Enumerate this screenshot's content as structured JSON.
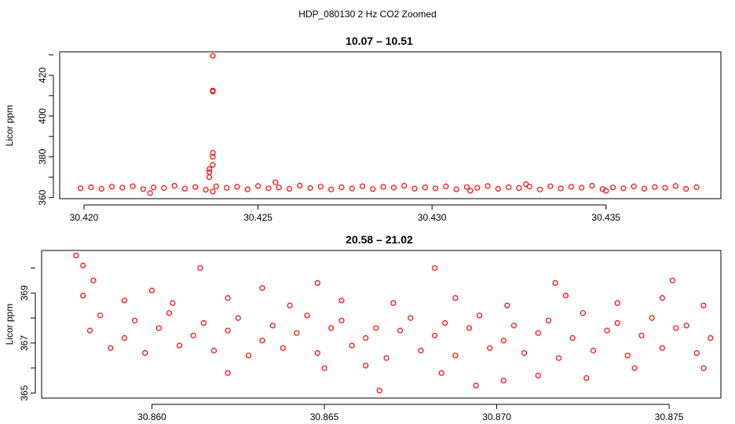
{
  "figure": {
    "title": "HDP_080130  2 Hz CO2 Zoomed"
  },
  "chart_data": [
    {
      "type": "scatter",
      "title": "10.07 – 10.51",
      "ylabel": "Licor ppm",
      "xlabel": "",
      "xlim": [
        30.4193,
        30.4383
      ],
      "ylim": [
        359.5,
        431.5
      ],
      "xticks": [
        "30.420",
        "30.425",
        "30.430",
        "30.435"
      ],
      "yticks": [
        "360",
        "380",
        "400",
        "420"
      ],
      "marker": "open-circle",
      "color": "#ff0000",
      "series_note_x_range": [
        30.4197,
        30.4378
      ],
      "points": [
        [
          30.4199,
          364.6
        ],
        [
          30.4202,
          365.1
        ],
        [
          30.4205,
          364.3
        ],
        [
          30.4208,
          365.4
        ],
        [
          30.4211,
          364.9
        ],
        [
          30.4214,
          365.6
        ],
        [
          30.4217,
          364.2
        ],
        [
          30.422,
          365.0
        ],
        [
          30.4223,
          364.7
        ],
        [
          30.4226,
          365.8
        ],
        [
          30.4229,
          364.4
        ],
        [
          30.4232,
          365.2
        ],
        [
          30.4235,
          363.9
        ],
        [
          30.4238,
          365.5
        ],
        [
          30.4241,
          364.8
        ],
        [
          30.4244,
          365.3
        ],
        [
          30.4247,
          364.1
        ],
        [
          30.425,
          365.7
        ],
        [
          30.4253,
          364.6
        ],
        [
          30.4256,
          365.0
        ],
        [
          30.4259,
          364.3
        ],
        [
          30.4262,
          365.9
        ],
        [
          30.4265,
          364.7
        ],
        [
          30.4268,
          365.4
        ],
        [
          30.4271,
          364.0
        ],
        [
          30.4274,
          365.1
        ],
        [
          30.4277,
          364.5
        ],
        [
          30.428,
          365.6
        ],
        [
          30.4283,
          364.2
        ],
        [
          30.4286,
          365.3
        ],
        [
          30.4289,
          364.9
        ],
        [
          30.4292,
          365.8
        ],
        [
          30.4295,
          364.4
        ],
        [
          30.4298,
          365.0
        ],
        [
          30.4301,
          364.6
        ],
        [
          30.4304,
          365.5
        ],
        [
          30.4307,
          364.1
        ],
        [
          30.431,
          365.2
        ],
        [
          30.4313,
          364.8
        ],
        [
          30.4316,
          365.7
        ],
        [
          30.4319,
          364.3
        ],
        [
          30.4322,
          365.1
        ],
        [
          30.4325,
          364.7
        ],
        [
          30.4328,
          365.4
        ],
        [
          30.4331,
          364.0
        ],
        [
          30.4334,
          365.6
        ],
        [
          30.4337,
          364.5
        ],
        [
          30.434,
          365.3
        ],
        [
          30.4343,
          364.9
        ],
        [
          30.4346,
          365.8
        ],
        [
          30.4349,
          364.2
        ],
        [
          30.4352,
          365.0
        ],
        [
          30.4355,
          364.6
        ],
        [
          30.4358,
          365.5
        ],
        [
          30.4361,
          364.4
        ],
        [
          30.4364,
          365.2
        ],
        [
          30.4367,
          364.8
        ],
        [
          30.437,
          365.7
        ],
        [
          30.4373,
          364.3
        ],
        [
          30.4376,
          365.1
        ],
        [
          30.4219,
          362.2
        ],
        [
          30.4237,
          363.0
        ],
        [
          30.4311,
          363.4
        ],
        [
          30.435,
          363.3
        ],
        [
          30.4236,
          370.0
        ],
        [
          30.4236,
          372.5
        ],
        [
          30.4236,
          374.0
        ],
        [
          30.4237,
          376.0
        ],
        [
          30.4237,
          380.0
        ],
        [
          30.4237,
          382.0
        ],
        [
          30.4237,
          412.0
        ],
        [
          30.4237,
          412.5
        ],
        [
          30.4237,
          429.5
        ],
        [
          30.4255,
          367.5
        ],
        [
          30.4327,
          366.6
        ]
      ]
    },
    {
      "type": "scatter",
      "title": "20.58 – 21.02",
      "ylabel": "Licor ppm",
      "xlabel": "",
      "xlim": [
        30.8568,
        30.8765
      ],
      "ylim": [
        364.8,
        370.7
      ],
      "xticks": [
        "30.860",
        "30.865",
        "30.870",
        "30.875"
      ],
      "yticks": [
        "365",
        "367",
        "369"
      ],
      "marker": "open-circle",
      "color": "#ff0000",
      "points": [
        [
          30.8578,
          370.5
        ],
        [
          30.858,
          370.1
        ],
        [
          30.8583,
          369.5
        ],
        [
          30.8614,
          370.0
        ],
        [
          30.8682,
          370.0
        ],
        [
          30.86,
          369.1
        ],
        [
          30.8632,
          369.2
        ],
        [
          30.8648,
          369.4
        ],
        [
          30.8717,
          369.4
        ],
        [
          30.8751,
          369.5
        ],
        [
          30.858,
          368.9
        ],
        [
          30.8592,
          368.7
        ],
        [
          30.8606,
          368.6
        ],
        [
          30.8622,
          368.8
        ],
        [
          30.864,
          368.5
        ],
        [
          30.8655,
          368.7
        ],
        [
          30.867,
          368.6
        ],
        [
          30.8688,
          368.8
        ],
        [
          30.8703,
          368.5
        ],
        [
          30.872,
          368.9
        ],
        [
          30.8735,
          368.6
        ],
        [
          30.8748,
          368.8
        ],
        [
          30.876,
          368.5
        ],
        [
          30.8585,
          368.1
        ],
        [
          30.8595,
          367.9
        ],
        [
          30.8605,
          368.2
        ],
        [
          30.8615,
          367.8
        ],
        [
          30.8625,
          368.0
        ],
        [
          30.8635,
          367.7
        ],
        [
          30.8645,
          368.1
        ],
        [
          30.8655,
          367.9
        ],
        [
          30.8665,
          367.6
        ],
        [
          30.8675,
          368.0
        ],
        [
          30.8685,
          367.8
        ],
        [
          30.8695,
          368.1
        ],
        [
          30.8705,
          367.7
        ],
        [
          30.8715,
          367.9
        ],
        [
          30.8725,
          368.2
        ],
        [
          30.8735,
          367.8
        ],
        [
          30.8745,
          368.0
        ],
        [
          30.8755,
          367.7
        ],
        [
          30.8582,
          367.5
        ],
        [
          30.8592,
          367.2
        ],
        [
          30.8602,
          367.6
        ],
        [
          30.8612,
          367.3
        ],
        [
          30.8622,
          367.5
        ],
        [
          30.8632,
          367.1
        ],
        [
          30.8642,
          367.4
        ],
        [
          30.8652,
          367.6
        ],
        [
          30.8662,
          367.2
        ],
        [
          30.8672,
          367.5
        ],
        [
          30.8682,
          367.3
        ],
        [
          30.8692,
          367.6
        ],
        [
          30.8702,
          367.1
        ],
        [
          30.8712,
          367.4
        ],
        [
          30.8722,
          367.2
        ],
        [
          30.8732,
          367.5
        ],
        [
          30.8742,
          367.3
        ],
        [
          30.8752,
          367.6
        ],
        [
          30.8762,
          367.2
        ],
        [
          30.8588,
          366.8
        ],
        [
          30.8598,
          366.6
        ],
        [
          30.8608,
          366.9
        ],
        [
          30.8618,
          366.7
        ],
        [
          30.8628,
          366.5
        ],
        [
          30.8638,
          366.8
        ],
        [
          30.8648,
          366.6
        ],
        [
          30.8658,
          366.9
        ],
        [
          30.8668,
          366.4
        ],
        [
          30.8678,
          366.7
        ],
        [
          30.8688,
          366.5
        ],
        [
          30.8698,
          366.8
        ],
        [
          30.8708,
          366.6
        ],
        [
          30.8718,
          366.4
        ],
        [
          30.8728,
          366.7
        ],
        [
          30.8738,
          366.5
        ],
        [
          30.8748,
          366.8
        ],
        [
          30.8758,
          366.6
        ],
        [
          30.8622,
          365.8
        ],
        [
          30.865,
          366.0
        ],
        [
          30.8662,
          366.1
        ],
        [
          30.8684,
          365.8
        ],
        [
          30.8694,
          365.3
        ],
        [
          30.8702,
          365.5
        ],
        [
          30.8712,
          365.7
        ],
        [
          30.8726,
          365.6
        ],
        [
          30.874,
          366.0
        ],
        [
          30.876,
          366.0
        ],
        [
          30.8666,
          365.1
        ]
      ]
    }
  ]
}
